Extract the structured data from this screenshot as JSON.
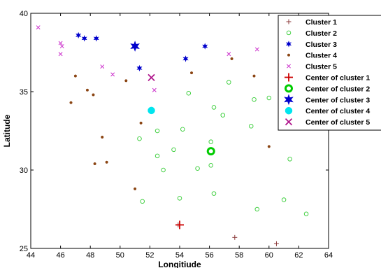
{
  "chart_data": {
    "type": "scatter",
    "title": "",
    "xlabel": "Longitiude",
    "ylabel": "Latitude",
    "xlim": [
      44,
      64
    ],
    "ylim": [
      25,
      40
    ],
    "xticks": [
      "44",
      "46",
      "48",
      "50",
      "52",
      "54",
      "56",
      "58",
      "60",
      "62",
      "64"
    ],
    "yticks": [
      "25",
      "30",
      "35",
      "40"
    ],
    "grid": false,
    "legend_position": "top-right",
    "series": [
      {
        "name": "Cluster 1",
        "marker": "plus",
        "color": "#8B3A3A",
        "points": [
          [
            53.9,
            26.5
          ],
          [
            57.7,
            25.7
          ],
          [
            60.5,
            25.3
          ]
        ]
      },
      {
        "name": "Cluster  2",
        "marker": "circle",
        "color": "#33CC33",
        "points": [
          [
            51.5,
            28.0
          ],
          [
            52.5,
            30.9
          ],
          [
            52.9,
            30.0
          ],
          [
            52.5,
            32.5
          ],
          [
            51.3,
            32.0
          ],
          [
            53.6,
            31.3
          ],
          [
            54.2,
            32.6
          ],
          [
            54.0,
            28.2
          ],
          [
            54.6,
            34.9
          ],
          [
            55.2,
            30.1
          ],
          [
            56.3,
            28.5
          ],
          [
            56.1,
            30.3
          ],
          [
            56.1,
            31.8
          ],
          [
            56.3,
            34.0
          ],
          [
            56.9,
            33.5
          ],
          [
            57.3,
            35.6
          ],
          [
            58.8,
            32.8
          ],
          [
            59.0,
            34.5
          ],
          [
            60.0,
            34.6
          ],
          [
            59.2,
            27.5
          ],
          [
            61.0,
            28.1
          ],
          [
            61.4,
            30.7
          ],
          [
            62.5,
            27.2
          ]
        ]
      },
      {
        "name": "Cluster 3",
        "marker": "star",
        "color": "#0000CC",
        "points": [
          [
            47.2,
            38.6
          ],
          [
            47.6,
            38.4
          ],
          [
            48.4,
            38.4
          ],
          [
            51.3,
            36.5
          ],
          [
            54.4,
            37.1
          ],
          [
            55.7,
            37.9
          ]
        ]
      },
      {
        "name": "Cluster 4",
        "marker": "dot",
        "color": "#8B4513",
        "points": [
          [
            46.7,
            34.3
          ],
          [
            47.0,
            36.0
          ],
          [
            47.8,
            35.1
          ],
          [
            48.2,
            34.8
          ],
          [
            48.8,
            32.1
          ],
          [
            48.3,
            30.4
          ],
          [
            49.1,
            30.5
          ],
          [
            50.4,
            35.7
          ],
          [
            51.0,
            28.8
          ],
          [
            51.4,
            33.0
          ],
          [
            54.8,
            36.2
          ],
          [
            57.5,
            37.1
          ],
          [
            59.0,
            36.0
          ],
          [
            60.0,
            31.5
          ]
        ]
      },
      {
        "name": "Cluster 5",
        "marker": "x",
        "color": "#CC33CC",
        "points": [
          [
            44.5,
            39.1
          ],
          [
            46.0,
            38.1
          ],
          [
            46.0,
            37.4
          ],
          [
            46.1,
            37.9
          ],
          [
            48.8,
            36.6
          ],
          [
            49.5,
            36.1
          ],
          [
            52.3,
            35.1
          ],
          [
            57.3,
            37.4
          ],
          [
            59.2,
            37.7
          ]
        ]
      }
    ],
    "centers": [
      {
        "name": "Center of cluster 1",
        "marker": "plus",
        "color": "#CC0000",
        "x": 54.0,
        "y": 26.5
      },
      {
        "name": "Center of cluster 2",
        "marker": "circle",
        "color": "#00CC00",
        "x": 56.1,
        "y": 31.2
      },
      {
        "name": "Center of cluster 3",
        "marker": "star",
        "color": "#0000CC",
        "x": 51.0,
        "y": 37.9
      },
      {
        "name": "Center of cluster 4",
        "marker": "dot",
        "color": "#00E5EE",
        "x": 52.1,
        "y": 33.8
      },
      {
        "name": "Center of cluster 5",
        "marker": "x",
        "color": "#B0168C",
        "x": 52.1,
        "y": 35.9
      }
    ],
    "legend": [
      {
        "label": "Cluster 1",
        "marker": "plus",
        "color": "#8B3A3A",
        "size": "small"
      },
      {
        "label": "Cluster  2",
        "marker": "circle",
        "color": "#33CC33",
        "size": "small"
      },
      {
        "label": "Cluster 3",
        "marker": "star",
        "color": "#0000CC",
        "size": "small"
      },
      {
        "label": "Cluster 4",
        "marker": "dot",
        "color": "#8B4513",
        "size": "small"
      },
      {
        "label": "Cluster 5",
        "marker": "x",
        "color": "#CC33CC",
        "size": "small"
      },
      {
        "label": "Center of cluster 1",
        "marker": "plus",
        "color": "#CC0000",
        "size": "large"
      },
      {
        "label": "Center of cluster 2",
        "marker": "circle",
        "color": "#00CC00",
        "size": "large"
      },
      {
        "label": "Center of cluster 3",
        "marker": "star",
        "color": "#0000CC",
        "size": "large"
      },
      {
        "label": "Center of cluster 4",
        "marker": "dot",
        "color": "#00E5EE",
        "size": "large"
      },
      {
        "label": "Center of cluster 5",
        "marker": "x",
        "color": "#B0168C",
        "size": "large"
      }
    ]
  }
}
